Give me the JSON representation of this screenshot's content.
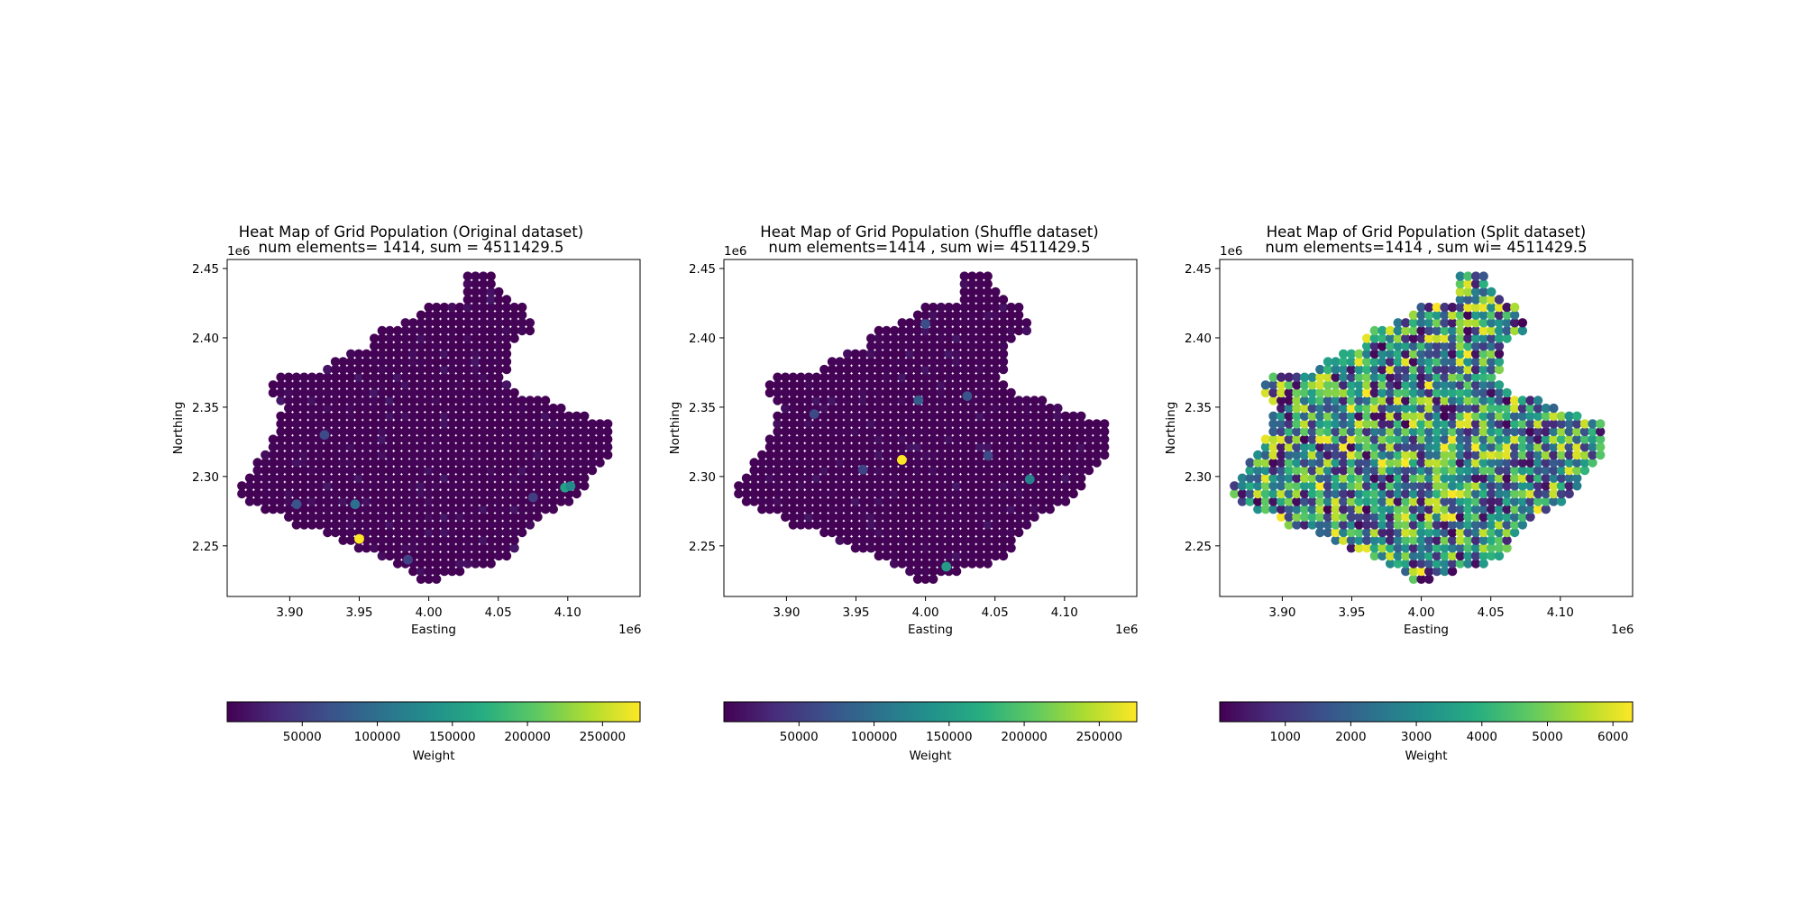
{
  "chart_data": [
    {
      "type": "scatter",
      "title": "Heat Map of Grid Population (Original dataset)",
      "subtitle": "num elements= 1414, sum = 4511429.5",
      "xlabel": "Easting",
      "ylabel": "Northing",
      "x_offset_label": "1e6",
      "y_offset_label": "1e6",
      "xlim": [
        3.855,
        4.152
      ],
      "ylim": [
        2.2135,
        2.4565
      ],
      "xticks": [
        "3.90",
        "3.95",
        "4.00",
        "4.05",
        "4.10"
      ],
      "yticks": [
        "2.25",
        "2.30",
        "2.35",
        "2.40",
        "2.45"
      ],
      "grid": false,
      "colorbar": {
        "label": "Weight",
        "range": [
          0,
          275000
        ],
        "ticks": [
          "50000",
          "100000",
          "150000",
          "200000",
          "250000"
        ],
        "colormap": "viridis"
      },
      "highlights": [
        {
          "x": 3.95,
          "y": 2.255,
          "value": 275000
        },
        {
          "x": 3.947,
          "y": 2.28,
          "value": 100000
        },
        {
          "x": 4.098,
          "y": 2.292,
          "value": 155000
        },
        {
          "x": 4.102,
          "y": 2.293,
          "value": 130000
        },
        {
          "x": 3.905,
          "y": 2.28,
          "value": 70000
        },
        {
          "x": 3.925,
          "y": 2.33,
          "value": 60000
        },
        {
          "x": 3.985,
          "y": 2.24,
          "value": 55000
        },
        {
          "x": 4.075,
          "y": 2.285,
          "value": 50000
        }
      ]
    },
    {
      "type": "scatter",
      "title": "Heat Map of Grid Population (Shuffle dataset)",
      "subtitle": "num elements=1414  , sum wi= 4511429.5",
      "xlabel": "Easting",
      "ylabel": "Northing",
      "x_offset_label": "1e6",
      "y_offset_label": "1e6",
      "xlim": [
        3.855,
        4.152
      ],
      "ylim": [
        2.2135,
        2.4565
      ],
      "xticks": [
        "3.90",
        "3.95",
        "4.00",
        "4.05",
        "4.10"
      ],
      "yticks": [
        "2.25",
        "2.30",
        "2.35",
        "2.40",
        "2.45"
      ],
      "grid": false,
      "colorbar": {
        "label": "Weight",
        "range": [
          0,
          275000
        ],
        "ticks": [
          "50000",
          "100000",
          "150000",
          "200000",
          "250000"
        ],
        "colormap": "viridis"
      },
      "highlights": [
        {
          "x": 3.983,
          "y": 2.312,
          "value": 275000
        },
        {
          "x": 4.015,
          "y": 2.235,
          "value": 150000
        },
        {
          "x": 4.075,
          "y": 2.298,
          "value": 120000
        },
        {
          "x": 3.995,
          "y": 2.355,
          "value": 80000
        },
        {
          "x": 4.03,
          "y": 2.358,
          "value": 70000
        },
        {
          "x": 4.0,
          "y": 2.41,
          "value": 65000
        },
        {
          "x": 3.92,
          "y": 2.345,
          "value": 60000
        },
        {
          "x": 4.045,
          "y": 2.315,
          "value": 60000
        },
        {
          "x": 3.955,
          "y": 2.305,
          "value": 55000
        }
      ]
    },
    {
      "type": "scatter",
      "title": "Heat Map of Grid Population (Split dataset)",
      "subtitle": "num elements=1414  , sum wi= 4511429.5",
      "xlabel": "Easting",
      "ylabel": "Northing",
      "x_offset_label": "1e6",
      "y_offset_label": "1e6",
      "xlim": [
        3.855,
        4.152
      ],
      "ylim": [
        2.2135,
        2.4565
      ],
      "xticks": [
        "3.90",
        "3.95",
        "4.00",
        "4.05",
        "4.10"
      ],
      "yticks": [
        "2.25",
        "2.30",
        "2.35",
        "2.40",
        "2.45"
      ],
      "grid": false,
      "colorbar": {
        "label": "Weight",
        "range": [
          0,
          6300
        ],
        "ticks": [
          "1000",
          "2000",
          "3000",
          "4000",
          "5000",
          "6000"
        ],
        "colormap": "viridis"
      },
      "highlights": []
    }
  ]
}
